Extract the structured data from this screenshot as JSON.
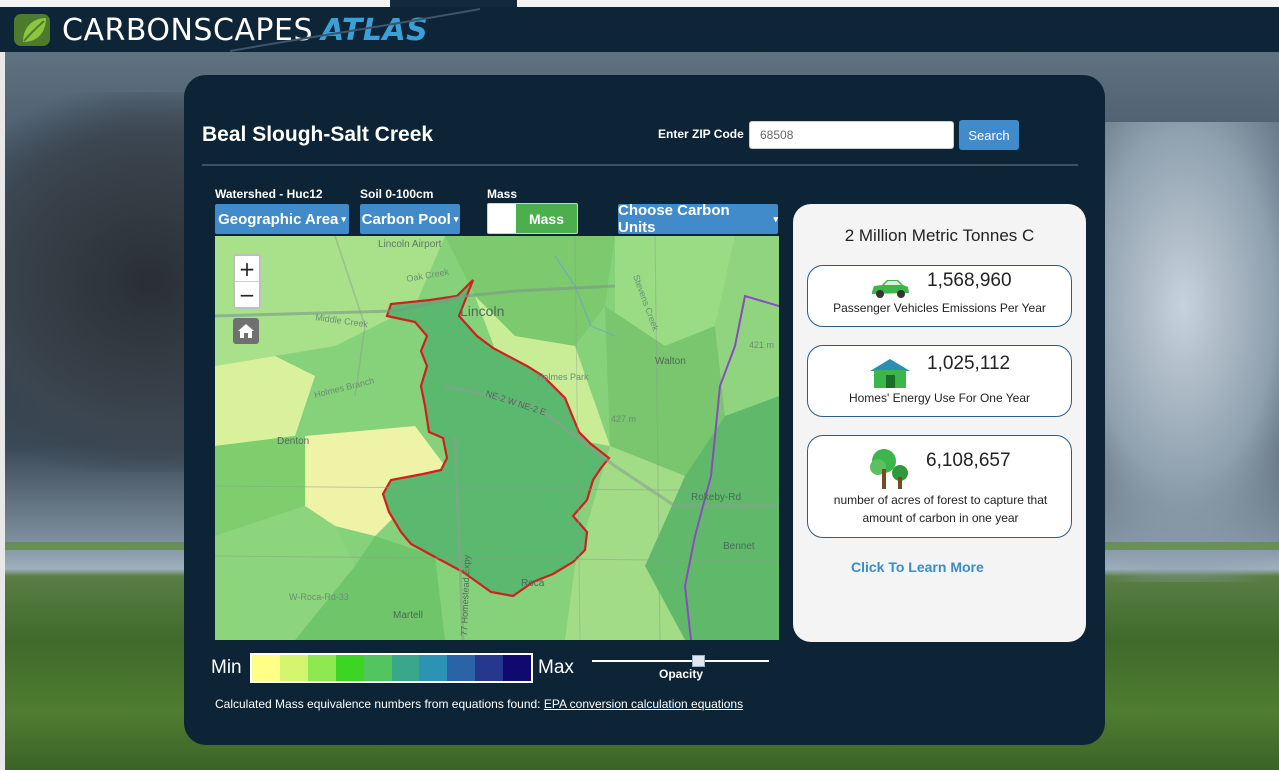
{
  "app": {
    "logo_main": "CARBONSCAPES",
    "logo_accent": "ATLAS"
  },
  "panel": {
    "region_title": "Beal Slough-Salt Creek",
    "zip_label": "Enter ZIP Code",
    "zip_value": "68508",
    "search_label": "Search"
  },
  "controls": {
    "geo_label": "Watershed - Huc12",
    "geo_button": "Geographic Area",
    "pool_label": "Soil 0-100cm",
    "pool_button": "Carbon Pool",
    "mass_label": "Mass",
    "mass_toggle": "Mass",
    "units_button": "Choose Carbon Units"
  },
  "map": {
    "zoom_in": "+",
    "zoom_out": "−",
    "places": {
      "lincoln_airport": "Lincoln Airport",
      "lincoln": "Lincoln",
      "denton": "Denton",
      "walton": "Walton",
      "holmes_park": "Holmes Park",
      "martell": "Martell",
      "roca": "Roca",
      "bennet": "Bennet",
      "rokeby_rd": "Rokeby-Rd",
      "w_roca_rd": "W-Roca-Rd-33",
      "homestead_expy": "77 Homestead Expy",
      "ne2": "NE-2 W NE-2 E",
      "oak_creek": "Oak Creek",
      "middle_creek": "Middle Creek",
      "holmes_branch": "Holmes Branch",
      "stevens_creek": "Stevens Creek",
      "elev1": "421 m",
      "elev2": "427 m"
    }
  },
  "legend": {
    "min": "Min",
    "max": "Max",
    "colors": [
      "#ffff88",
      "#d4f56d",
      "#8ee850",
      "#3cd523",
      "#52c460",
      "#3aa888",
      "#2c93b4",
      "#2a63a8",
      "#25388e",
      "#100a70"
    ],
    "opacity_label": "Opacity",
    "opacity_value": 0.6
  },
  "footnote": {
    "text": "Calculated Mass equivalence numbers from equations found: ",
    "link": "EPA conversion calculation equations"
  },
  "info": {
    "title": "2 Million Metric Tonnes C",
    "cards": [
      {
        "icon": "car-icon",
        "value": "1,568,960",
        "desc": "Passenger Vehicles Emissions Per Year"
      },
      {
        "icon": "home-icon",
        "value": "1,025,112",
        "desc": "Homes' Energy Use For One Year"
      },
      {
        "icon": "trees-icon",
        "value": "6,108,657",
        "desc": "number of acres of forest to capture that amount of carbon in one year"
      }
    ],
    "learn_more": "Click To Learn More"
  }
}
